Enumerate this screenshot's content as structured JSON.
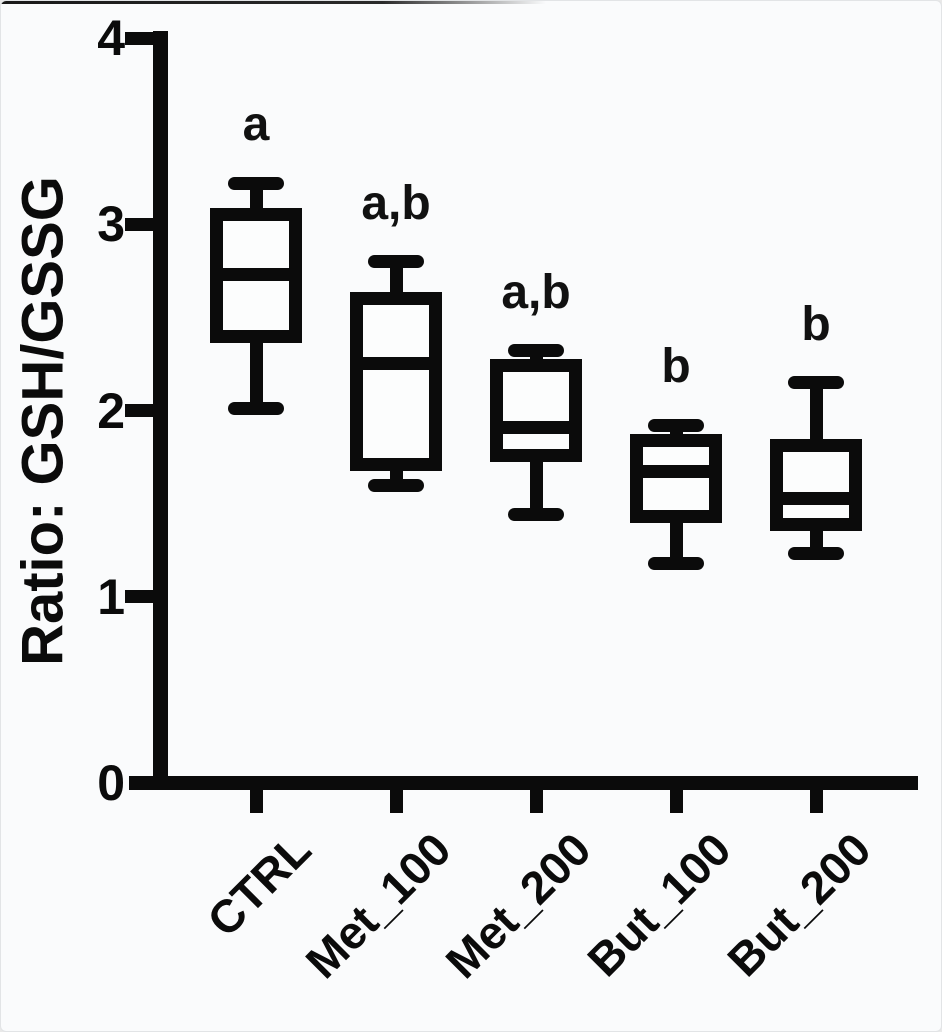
{
  "figure": {
    "background": "#fafbfc",
    "ink": "#0b0b0b"
  },
  "chart_data": {
    "type": "box",
    "title": "",
    "ylabel": "Ratio: GSH/GSSG",
    "xlabel": "",
    "ylim": [
      0,
      4
    ],
    "yticks": [
      0,
      1,
      2,
      3,
      4
    ],
    "grid": false,
    "legend": false,
    "categories": [
      "CTRL",
      "Met_100",
      "Met_200",
      "But_100",
      "But_200"
    ],
    "series": [
      {
        "name": "CTRL",
        "min": 2.01,
        "q1": 2.4,
        "median": 2.73,
        "q3": 3.05,
        "max": 3.22,
        "annotation": "a"
      },
      {
        "name": "Met_100",
        "min": 1.6,
        "q1": 1.71,
        "median": 2.25,
        "q3": 2.6,
        "max": 2.8,
        "annotation": "a,b"
      },
      {
        "name": "Met_200",
        "min": 1.44,
        "q1": 1.76,
        "median": 1.91,
        "q3": 2.24,
        "max": 2.32,
        "annotation": "a,b"
      },
      {
        "name": "But_100",
        "min": 1.18,
        "q1": 1.43,
        "median": 1.67,
        "q3": 1.84,
        "max": 1.92,
        "annotation": "b"
      },
      {
        "name": "But_200",
        "min": 1.23,
        "q1": 1.39,
        "median": 1.53,
        "q3": 1.81,
        "max": 2.15,
        "annotation": "b"
      }
    ]
  }
}
